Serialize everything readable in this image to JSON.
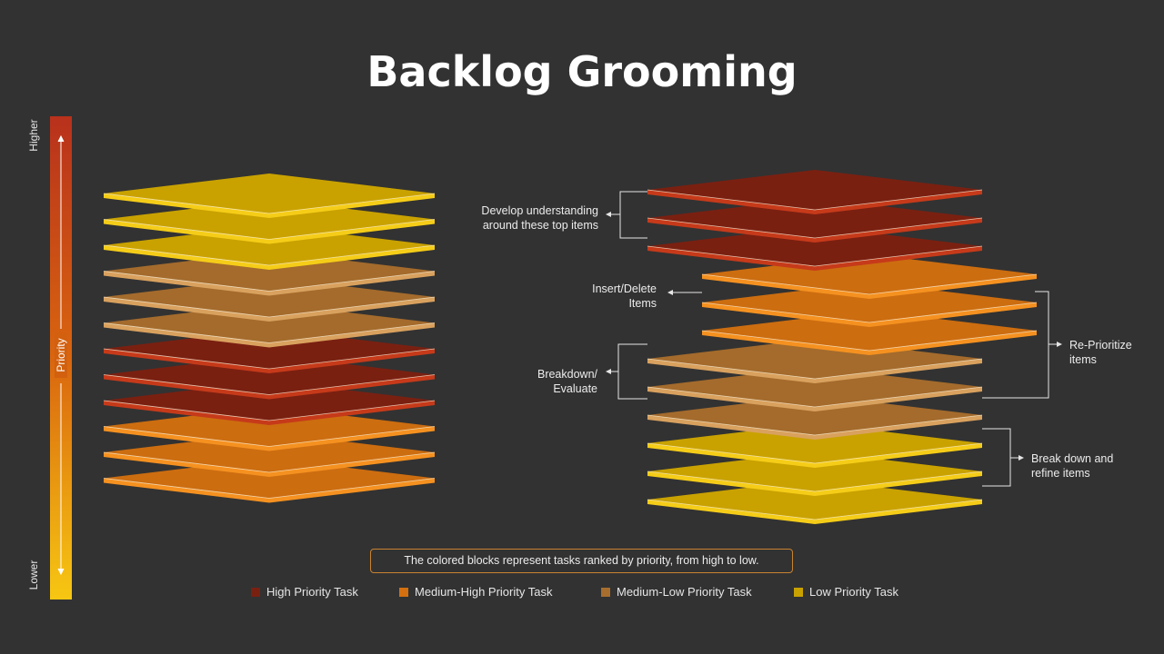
{
  "title": "Backlog Grooming",
  "axis": {
    "top": "Higher",
    "middle": "Priority",
    "bottom": "Lower"
  },
  "annotations": {
    "develop": [
      "Develop understanding",
      "around these top items"
    ],
    "insert": [
      "Insert/Delete",
      "Items"
    ],
    "breakdown": [
      "Breakdown/",
      "Evaluate"
    ],
    "reprioritize": [
      "Re-Prioritize",
      "items"
    ],
    "refine": [
      "Break down and",
      "refine items"
    ]
  },
  "note": "The colored blocks represent tasks ranked by priority, from high to low.",
  "legend": [
    {
      "label": "High Priority Task",
      "color": "#7a2011"
    },
    {
      "label": "Medium-High Priority Task",
      "color": "#d4700f"
    },
    {
      "label": "Medium-Low Priority Task",
      "color": "#a86e2e"
    },
    {
      "label": "Low Priority Task",
      "color": "#c9a200"
    }
  ],
  "colors": {
    "high": {
      "face": "#7a2011",
      "edge": "#c63a1a"
    },
    "medhigh": {
      "face": "#cc6d10",
      "edge": "#f59120"
    },
    "medlow": {
      "face": "#a46b2c",
      "edge": "#d9a15e"
    },
    "low": {
      "face": "#c9a200",
      "edge": "#f5cd18"
    }
  },
  "stacks": {
    "left": [
      "low",
      "low",
      "low",
      "medlow",
      "medlow",
      "medlow",
      "high",
      "high",
      "high",
      "medhigh",
      "medhigh",
      "medhigh"
    ],
    "right": [
      "high",
      "high",
      "high",
      "medhigh",
      "medhigh",
      "medhigh",
      "medlow",
      "medlow",
      "medlow",
      "low",
      "low",
      "low"
    ]
  }
}
